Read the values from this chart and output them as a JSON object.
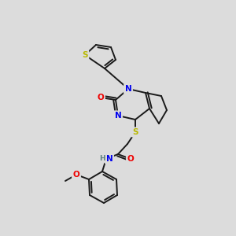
{
  "background_color": "#dcdcdc",
  "bond_color": "#1a1a1a",
  "atom_colors": {
    "S": "#b8b800",
    "N": "#0000ee",
    "O": "#ee0000",
    "H": "#5a8080",
    "C": "#1a1a1a"
  },
  "figsize": [
    3.0,
    3.0
  ],
  "dpi": 100
}
